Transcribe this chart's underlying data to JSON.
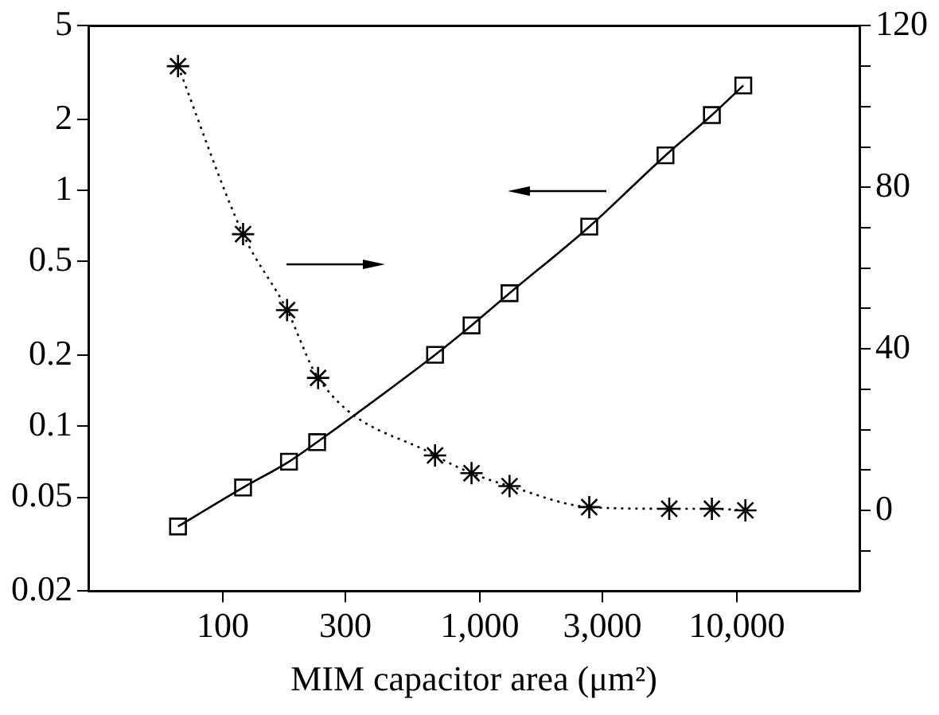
{
  "chart_data": {
    "type": "line",
    "xlabel": "MIM capacitor area (μm²)",
    "log": "xy",
    "grid": false,
    "legend": false,
    "xlim": [
      30,
      30000
    ],
    "xticks": [
      100,
      300,
      {
        "value": 1000,
        "label": "1,000"
      },
      {
        "value": 3000,
        "label": "3,000"
      },
      {
        "value": 10000,
        "label": "10,000"
      }
    ],
    "ylim": [
      0.02,
      5
    ],
    "yticks": [
      0.02,
      0.05,
      0.1,
      0.2,
      0.5,
      1,
      2,
      5
    ],
    "y2lim": [
      -20,
      120
    ],
    "y2ticks": [
      {
        "value": -10,
        "label": null
      },
      0,
      {
        "value": 10,
        "label": null
      },
      {
        "value": 20,
        "label": null
      },
      {
        "value": 30,
        "label": null
      },
      40,
      {
        "value": 50,
        "label": null
      },
      {
        "value": 60,
        "label": null
      },
      {
        "value": 70,
        "label": null
      },
      80,
      {
        "value": 90,
        "label": null
      },
      {
        "value": 100,
        "label": null
      },
      {
        "value": 110,
        "label": null
      },
      120
    ],
    "series": [
      {
        "color": "#000000",
        "marker": "square",
        "line_style": "solid",
        "x": [
          67,
          120,
          181,
          233,
          670,
          929,
          1306,
          2667,
          5280,
          8000,
          10600
        ],
        "values": [
          0.0376,
          0.055,
          0.0708,
          0.0857,
          0.201,
          0.268,
          0.367,
          0.703,
          1.41,
          2.09,
          2.79
        ]
      },
      {
        "color": "#000000",
        "marker": "cross",
        "line_style": "dotted",
        "axis": "y2",
        "x": [
          67,
          120,
          178,
          235,
          670,
          929,
          1306,
          2667,
          5460,
          8000,
          10800
        ],
        "values": [
          110,
          68.4,
          49.6,
          32.8,
          13.6,
          9.2,
          6,
          0.8,
          0.4,
          0.4,
          0
        ]
      }
    ]
  }
}
